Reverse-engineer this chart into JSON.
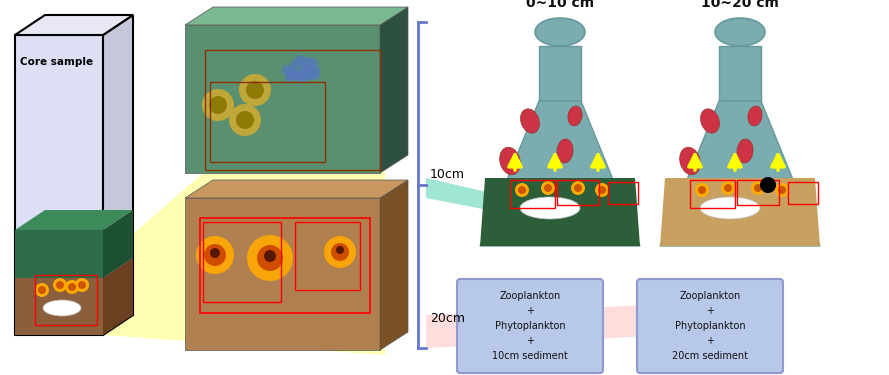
{
  "bg_color": "#ffffff",
  "core_label": "Core sample",
  "depth_labels": [
    "10cm",
    "20cm"
  ],
  "flask_labels": [
    "0~10 cm",
    "10~20 cm"
  ],
  "flask_color": "#7aacb0",
  "box_labels": [
    "Zooplankton\n+\nPhytoplankton\n+\n10cm sediment",
    "Zooplankton\n+\nPhytoplankton\n+\n20cm sediment"
  ],
  "box_bg": "#b8c8e8",
  "box_border": "#9099cc",
  "sediment_green": "#2d5e3a",
  "sediment_brown": "#c8a060",
  "green_panel": "#5a9070",
  "brown_panel": "#b08050",
  "bracket_color": "#6677cc",
  "beam_yellow": "#ffff88",
  "beam_green": "#44ccaa",
  "beam_pink": "#ffaaaa"
}
